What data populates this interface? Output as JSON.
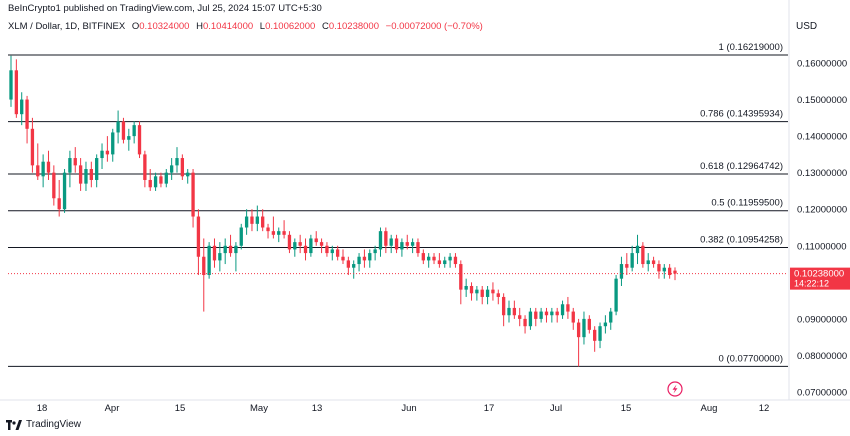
{
  "header": {
    "published": "BeInCrypto1 published on TradingView.com, Jul 25, 2024 15:07 UTC+5:30",
    "symbol": "XLM / Dollar, 1D, BITFINEX",
    "open_label": "O",
    "open": "0.10324000",
    "high_label": "H",
    "high": "0.10414000",
    "low_label": "L",
    "low": "0.10062000",
    "close_label": "C",
    "close": "0.10238000",
    "change": "−0.00072000 (−0.70%)",
    "currency": "USD"
  },
  "footer": {
    "brand": "TradingView"
  },
  "colors": {
    "up": "#089981",
    "down": "#f23645",
    "fib_line": "#131722",
    "text": "#131722",
    "price_tag": "#f23645"
  },
  "chart_data": {
    "type": "candlestick",
    "y_axis": {
      "min": 0.065,
      "max": 0.168,
      "ticks": [
        0.16,
        0.15,
        0.14,
        0.13,
        0.12,
        0.11,
        0.09,
        0.08,
        0.07
      ],
      "tick_labels": [
        "0.16000000",
        "0.15000000",
        "0.14000000",
        "0.13000000",
        "0.12000000",
        "0.11000000",
        "0.09000000",
        "0.08000000",
        "0.07000000"
      ]
    },
    "x_axis": {
      "ticks": [
        "18",
        "Apr",
        "15",
        "May",
        "13",
        "Jun",
        "17",
        "Jul",
        "15",
        "Aug",
        "12"
      ]
    },
    "current_price": {
      "value": 0.10238,
      "label": "0.10238000",
      "countdown": "14:22:12"
    },
    "fib_levels": [
      {
        "ratio": "1",
        "value": 0.16219,
        "label": "1 (0.16219000)"
      },
      {
        "ratio": "0.786",
        "value": 0.14395934,
        "label": "0.786 (0.14395934)"
      },
      {
        "ratio": "0.618",
        "value": 0.12964742,
        "label": "0.618 (0.12964742)"
      },
      {
        "ratio": "0.5",
        "value": 0.119595,
        "label": "0.5 (0.11959500)"
      },
      {
        "ratio": "0.382",
        "value": 0.10954258,
        "label": "0.382 (0.10954258)"
      },
      {
        "ratio": "0",
        "value": 0.077,
        "label": "0 (0.07700000)"
      }
    ],
    "candles": [
      [
        0.15,
        0.162,
        0.148,
        0.158
      ],
      [
        0.158,
        0.161,
        0.145,
        0.146
      ],
      [
        0.146,
        0.152,
        0.143,
        0.15
      ],
      [
        0.15,
        0.151,
        0.138,
        0.142
      ],
      [
        0.142,
        0.145,
        0.13,
        0.132
      ],
      [
        0.132,
        0.138,
        0.128,
        0.129
      ],
      [
        0.129,
        0.135,
        0.126,
        0.133
      ],
      [
        0.133,
        0.136,
        0.128,
        0.13
      ],
      [
        0.13,
        0.132,
        0.121,
        0.123
      ],
      [
        0.123,
        0.128,
        0.118,
        0.12
      ],
      [
        0.12,
        0.131,
        0.119,
        0.13
      ],
      [
        0.13,
        0.136,
        0.126,
        0.134
      ],
      [
        0.134,
        0.137,
        0.13,
        0.132
      ],
      [
        0.132,
        0.134,
        0.125,
        0.127
      ],
      [
        0.127,
        0.133,
        0.125,
        0.131
      ],
      [
        0.131,
        0.133,
        0.126,
        0.128
      ],
      [
        0.128,
        0.135,
        0.126,
        0.134
      ],
      [
        0.134,
        0.138,
        0.131,
        0.136
      ],
      [
        0.136,
        0.14,
        0.133,
        0.135
      ],
      [
        0.135,
        0.142,
        0.133,
        0.141
      ],
      [
        0.141,
        0.147,
        0.138,
        0.144
      ],
      [
        0.144,
        0.145,
        0.138,
        0.139
      ],
      [
        0.139,
        0.142,
        0.136,
        0.14
      ],
      [
        0.14,
        0.144,
        0.138,
        0.143
      ],
      [
        0.143,
        0.144,
        0.134,
        0.135
      ],
      [
        0.135,
        0.136,
        0.126,
        0.128
      ],
      [
        0.128,
        0.131,
        0.125,
        0.126
      ],
      [
        0.126,
        0.13,
        0.125,
        0.129
      ],
      [
        0.129,
        0.13,
        0.126,
        0.127
      ],
      [
        0.127,
        0.131,
        0.126,
        0.13
      ],
      [
        0.13,
        0.134,
        0.128,
        0.132
      ],
      [
        0.132,
        0.137,
        0.13,
        0.134
      ],
      [
        0.134,
        0.135,
        0.128,
        0.129
      ],
      [
        0.129,
        0.131,
        0.127,
        0.13
      ],
      [
        0.13,
        0.131,
        0.115,
        0.118
      ],
      [
        0.118,
        0.12,
        0.102,
        0.107
      ],
      [
        0.107,
        0.112,
        0.092,
        0.102
      ],
      [
        0.102,
        0.111,
        0.101,
        0.11
      ],
      [
        0.11,
        0.112,
        0.104,
        0.106
      ],
      [
        0.106,
        0.111,
        0.103,
        0.108
      ],
      [
        0.108,
        0.112,
        0.105,
        0.11
      ],
      [
        0.11,
        0.113,
        0.107,
        0.108
      ],
      [
        0.108,
        0.111,
        0.103,
        0.11
      ],
      [
        0.11,
        0.116,
        0.109,
        0.115
      ],
      [
        0.115,
        0.12,
        0.113,
        0.118
      ],
      [
        0.118,
        0.12,
        0.114,
        0.116
      ],
      [
        0.116,
        0.121,
        0.114,
        0.118
      ],
      [
        0.118,
        0.12,
        0.114,
        0.115
      ],
      [
        0.115,
        0.116,
        0.112,
        0.114
      ],
      [
        0.114,
        0.118,
        0.112,
        0.113
      ],
      [
        0.113,
        0.115,
        0.111,
        0.114
      ],
      [
        0.114,
        0.117,
        0.112,
        0.113
      ],
      [
        0.113,
        0.114,
        0.108,
        0.109
      ],
      [
        0.109,
        0.112,
        0.107,
        0.111
      ],
      [
        0.111,
        0.113,
        0.108,
        0.11
      ],
      [
        0.11,
        0.112,
        0.106,
        0.108
      ],
      [
        0.108,
        0.113,
        0.107,
        0.112
      ],
      [
        0.112,
        0.114,
        0.11,
        0.111
      ],
      [
        0.111,
        0.112,
        0.108,
        0.11
      ],
      [
        0.11,
        0.111,
        0.107,
        0.108
      ],
      [
        0.108,
        0.11,
        0.106,
        0.109
      ],
      [
        0.109,
        0.11,
        0.106,
        0.107
      ],
      [
        0.107,
        0.109,
        0.105,
        0.106
      ],
      [
        0.106,
        0.107,
        0.102,
        0.104
      ],
      [
        0.104,
        0.106,
        0.101,
        0.105
      ],
      [
        0.105,
        0.108,
        0.103,
        0.107
      ],
      [
        0.107,
        0.109,
        0.104,
        0.106
      ],
      [
        0.106,
        0.109,
        0.104,
        0.108
      ],
      [
        0.108,
        0.11,
        0.106,
        0.109
      ],
      [
        0.109,
        0.115,
        0.107,
        0.114
      ],
      [
        0.114,
        0.115,
        0.108,
        0.11
      ],
      [
        0.11,
        0.113,
        0.108,
        0.112
      ],
      [
        0.112,
        0.113,
        0.108,
        0.109
      ],
      [
        0.109,
        0.112,
        0.107,
        0.111
      ],
      [
        0.111,
        0.113,
        0.109,
        0.11
      ],
      [
        0.11,
        0.112,
        0.108,
        0.111
      ],
      [
        0.111,
        0.112,
        0.107,
        0.108
      ],
      [
        0.108,
        0.109,
        0.105,
        0.106
      ],
      [
        0.106,
        0.108,
        0.104,
        0.107
      ],
      [
        0.107,
        0.108,
        0.105,
        0.106
      ],
      [
        0.106,
        0.108,
        0.104,
        0.105
      ],
      [
        0.105,
        0.107,
        0.104,
        0.106
      ],
      [
        0.106,
        0.108,
        0.104,
        0.107
      ],
      [
        0.107,
        0.108,
        0.104,
        0.105
      ],
      [
        0.105,
        0.106,
        0.094,
        0.098
      ],
      [
        0.098,
        0.101,
        0.096,
        0.099
      ],
      [
        0.099,
        0.1,
        0.095,
        0.097
      ],
      [
        0.097,
        0.099,
        0.095,
        0.098
      ],
      [
        0.098,
        0.099,
        0.094,
        0.096
      ],
      [
        0.096,
        0.099,
        0.094,
        0.098
      ],
      [
        0.098,
        0.1,
        0.095,
        0.097
      ],
      [
        0.097,
        0.098,
        0.094,
        0.096
      ],
      [
        0.096,
        0.097,
        0.088,
        0.091
      ],
      [
        0.091,
        0.095,
        0.089,
        0.093
      ],
      [
        0.093,
        0.095,
        0.09,
        0.091
      ],
      [
        0.091,
        0.093,
        0.088,
        0.09
      ],
      [
        0.09,
        0.091,
        0.086,
        0.088
      ],
      [
        0.088,
        0.093,
        0.087,
        0.092
      ],
      [
        0.092,
        0.093,
        0.088,
        0.09
      ],
      [
        0.09,
        0.093,
        0.089,
        0.092
      ],
      [
        0.092,
        0.093,
        0.089,
        0.091
      ],
      [
        0.091,
        0.093,
        0.089,
        0.092
      ],
      [
        0.092,
        0.093,
        0.089,
        0.091
      ],
      [
        0.091,
        0.095,
        0.09,
        0.094
      ],
      [
        0.094,
        0.096,
        0.09,
        0.092
      ],
      [
        0.092,
        0.093,
        0.087,
        0.089
      ],
      [
        0.089,
        0.09,
        0.077,
        0.085
      ],
      [
        0.085,
        0.092,
        0.083,
        0.09
      ],
      [
        0.09,
        0.091,
        0.086,
        0.087
      ],
      [
        0.087,
        0.088,
        0.081,
        0.084
      ],
      [
        0.084,
        0.089,
        0.082,
        0.088
      ],
      [
        0.088,
        0.091,
        0.086,
        0.089
      ],
      [
        0.089,
        0.093,
        0.087,
        0.092
      ],
      [
        0.092,
        0.102,
        0.091,
        0.101
      ],
      [
        0.101,
        0.107,
        0.099,
        0.105
      ],
      [
        0.105,
        0.108,
        0.102,
        0.104
      ],
      [
        0.104,
        0.11,
        0.103,
        0.108
      ],
      [
        0.108,
        0.113,
        0.105,
        0.11
      ],
      [
        0.11,
        0.111,
        0.104,
        0.105
      ],
      [
        0.105,
        0.108,
        0.103,
        0.106
      ],
      [
        0.106,
        0.107,
        0.104,
        0.105
      ],
      [
        0.105,
        0.106,
        0.101,
        0.103
      ],
      [
        0.103,
        0.105,
        0.101,
        0.104
      ],
      [
        0.104,
        0.105,
        0.101,
        0.102
      ],
      [
        0.1032,
        0.1041,
        0.1006,
        0.1024
      ]
    ]
  }
}
